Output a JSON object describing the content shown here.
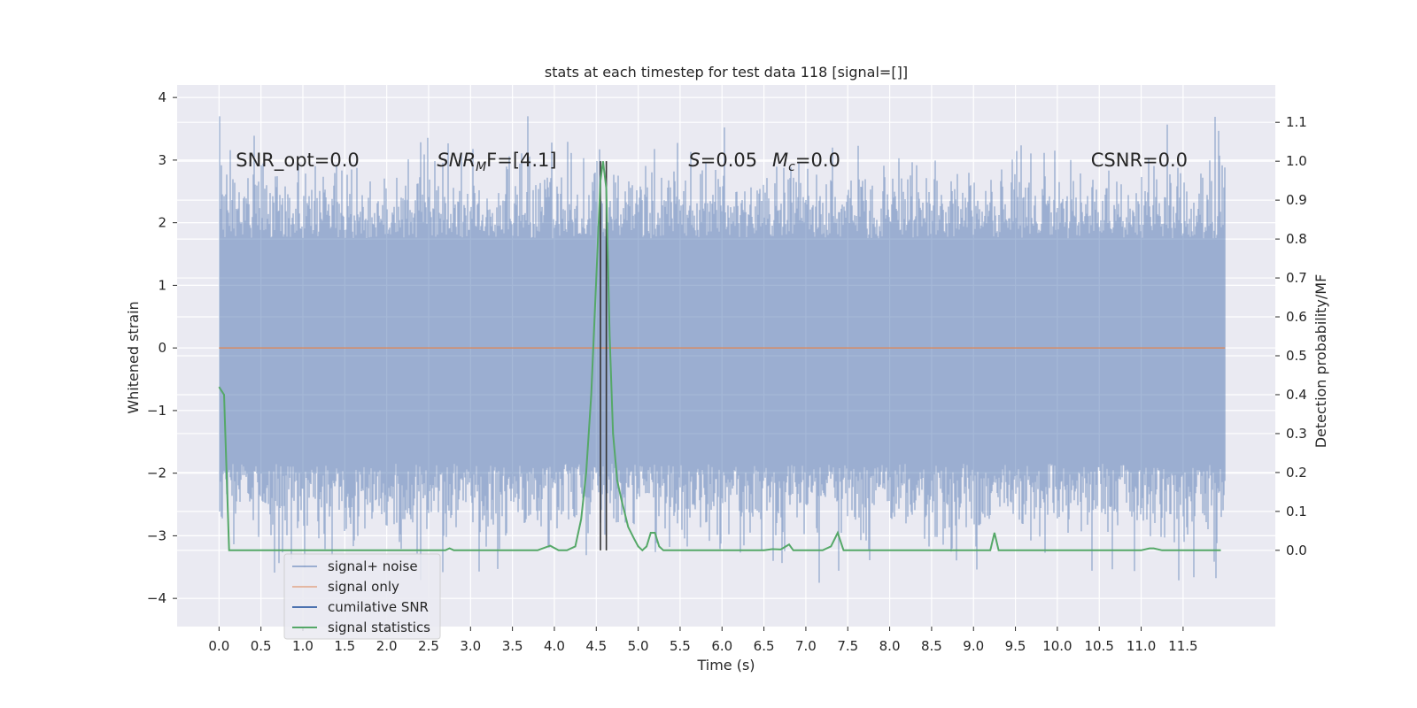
{
  "chart_data": {
    "type": "line",
    "title": "stats at each timestep for test data 118 [signal=[]]",
    "xlabel": "Time (s)",
    "ylabel": "Whitened strain",
    "ylabel_right": "Detection probability/MF",
    "xlim": [
      -0.5,
      12.6
    ],
    "ylim": [
      -4.45,
      4.2
    ],
    "ylim_right": [
      -0.196,
      1.196
    ],
    "x_ticks": [
      0.0,
      0.5,
      1.0,
      1.5,
      2.0,
      2.5,
      3.0,
      3.5,
      4.0,
      4.5,
      5.0,
      5.5,
      6.0,
      6.5,
      7.0,
      7.5,
      8.0,
      8.5,
      9.0,
      9.5,
      10.0,
      10.5,
      11.0,
      11.5
    ],
    "x_tick_labels": [
      "0.0",
      "0.5",
      "1.0",
      "1.5",
      "2.0",
      "2.5",
      "3.0",
      "3.5",
      "4.0",
      "4.5",
      "5.0",
      "5.5",
      "6.0",
      "6.5",
      "7.0",
      "7.5",
      "8.0",
      "8.5",
      "9.0",
      "9.5",
      "10.0",
      "10.5",
      "11.0",
      "11.5"
    ],
    "y_ticks": [
      -4,
      -3,
      -2,
      -1,
      0,
      1,
      2,
      3,
      4
    ],
    "y_tick_labels": [
      "−4",
      "−3",
      "−2",
      "−1",
      "0",
      "1",
      "2",
      "3",
      "4"
    ],
    "y_ticks_right": [
      0.0,
      0.1,
      0.2,
      0.3,
      0.4,
      0.5,
      0.6,
      0.7,
      0.8,
      0.9,
      1.0,
      1.1
    ],
    "y_tick_labels_right": [
      "0.0",
      "0.1",
      "0.2",
      "0.3",
      "0.4",
      "0.5",
      "0.6",
      "0.7",
      "0.8",
      "0.9",
      "1.0",
      "1.1"
    ],
    "grid": true,
    "legend_position": "lower-left",
    "series": [
      {
        "name": "signal+ noise",
        "color": "#4c72b0",
        "alpha": 0.5,
        "axis": "left",
        "t_range": [
          0.0,
          12.0
        ],
        "envelope_typical": [
          -1.9,
          1.8
        ],
        "extremes": [
          -4.1,
          3.7
        ]
      },
      {
        "name": "signal only",
        "color": "#dd8452",
        "alpha": 0.5,
        "axis": "left",
        "x": [
          0.0,
          12.0
        ],
        "y": [
          0.0,
          0.0
        ]
      },
      {
        "name": "cumilative SNR",
        "color": "#4c72b0",
        "axis": "right",
        "x": [],
        "y": []
      },
      {
        "name": "signal statistics",
        "color": "#55a868",
        "axis": "right",
        "x": [
          0.0,
          0.06,
          0.12,
          0.5,
          1.0,
          2.0,
          2.7,
          2.75,
          2.8,
          3.0,
          3.5,
          3.8,
          3.95,
          4.05,
          4.15,
          4.25,
          4.32,
          4.38,
          4.44,
          4.5,
          4.55,
          4.58,
          4.62,
          4.66,
          4.7,
          4.75,
          4.8,
          4.88,
          4.95,
          5.0,
          5.05,
          5.1,
          5.15,
          5.2,
          5.25,
          5.3,
          5.35,
          5.4,
          5.45,
          5.5,
          5.6,
          6.0,
          6.5,
          6.6,
          6.7,
          6.8,
          6.85,
          6.95,
          7.2,
          7.3,
          7.38,
          7.45,
          7.6,
          8.0,
          8.5,
          9.0,
          9.2,
          9.25,
          9.3,
          9.36,
          9.45,
          10.0,
          10.5,
          11.0,
          11.1,
          11.15,
          11.25,
          11.5,
          11.9,
          11.95
        ],
        "y": [
          0.42,
          0.4,
          0.0,
          0.0,
          0.0,
          0.0,
          0.0,
          0.005,
          0.0,
          0.0,
          0.0,
          0.0,
          0.012,
          0.0,
          0.0,
          0.01,
          0.08,
          0.2,
          0.4,
          0.7,
          0.95,
          1.0,
          0.93,
          0.55,
          0.3,
          0.18,
          0.13,
          0.06,
          0.03,
          0.01,
          0.0,
          0.01,
          0.045,
          0.045,
          0.01,
          0.0,
          0.0,
          0.0,
          0.0,
          0.0,
          0.0,
          0.0,
          0.0,
          0.003,
          0.002,
          0.015,
          0.0,
          0.0,
          0.0,
          0.01,
          0.045,
          0.0,
          0.0,
          0.0,
          0.0,
          0.0,
          0.0,
          0.045,
          0.0,
          0.0,
          0.0,
          0.0,
          0.0,
          0.0,
          0.005,
          0.005,
          0.0,
          0.0,
          0.0,
          0.0
        ]
      }
    ],
    "vlines": [
      {
        "x": 4.55,
        "color": "#333333"
      },
      {
        "x": 4.62,
        "color": "#333333"
      }
    ],
    "annotations": [
      {
        "text": "SNR_opt=0.0",
        "x": 0.2,
        "y": 3.0
      },
      {
        "text_main": "SNR",
        "text_sub": "M",
        "text_tail": "F=[4.1]",
        "x": 2.6,
        "y": 3.0
      },
      {
        "text_main": "S",
        "text_tail": "=0.05",
        "x": 5.6,
        "y": 3.0
      },
      {
        "text_main": "M",
        "text_sub": "c",
        "text_tail": "=0.0",
        "x": 6.6,
        "y": 3.0
      },
      {
        "text": "CSNR=0.0",
        "x": 10.4,
        "y": 3.0
      }
    ]
  }
}
